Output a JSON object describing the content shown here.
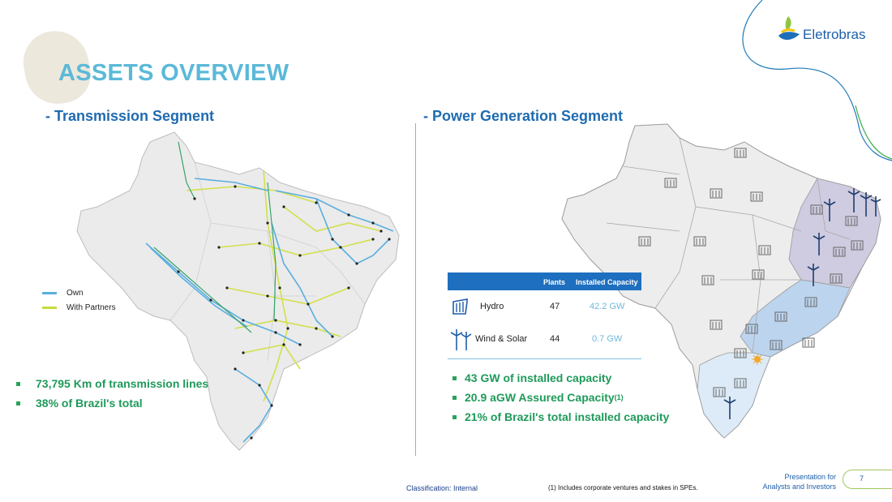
{
  "header": {
    "title": "ASSETS OVERVIEW",
    "logo_text": "Eletrobras"
  },
  "transmission": {
    "title": "- Transmission Segment",
    "legend": [
      {
        "label": "Own",
        "color": "#5aaee0"
      },
      {
        "label": "With Partners",
        "color": "#c8dc3c"
      }
    ],
    "bullets": [
      "73,795 Km of transmission lines",
      "38% of Brazil's total"
    ]
  },
  "generation": {
    "title": "- Power Generation Segment",
    "table": {
      "headers": [
        "Plants",
        "Installed Capacity"
      ],
      "rows": [
        {
          "icon": "hydro-icon",
          "type": "Hydro",
          "plants": "47",
          "capacity": "42.2 GW"
        },
        {
          "icon": "wind-turbine-icon",
          "type": "Wind & Solar",
          "plants": "44",
          "capacity": "0.7 GW"
        }
      ]
    },
    "bullets": [
      {
        "text": "43 GW of installed capacity"
      },
      {
        "text": "20.9 aGW Assured Capacity",
        "sup": "(1)"
      },
      {
        "text": "21% of Brazil's total installed capacity"
      }
    ]
  },
  "footer": {
    "classification": "Classification: Internal",
    "note": "(1) Includes corporate ventures and stakes in SPEs.",
    "presentation_line1": "Presentation for",
    "presentation_line2": "Analysts and Investors",
    "page_number": "7"
  },
  "colors": {
    "title": "#5bb9d8",
    "section": "#1f6bb0",
    "bullet": "#1e9a5a",
    "table_header": "#1e6fbf",
    "own_line": "#5aaee0",
    "partner_line": "#c8dc3c"
  }
}
